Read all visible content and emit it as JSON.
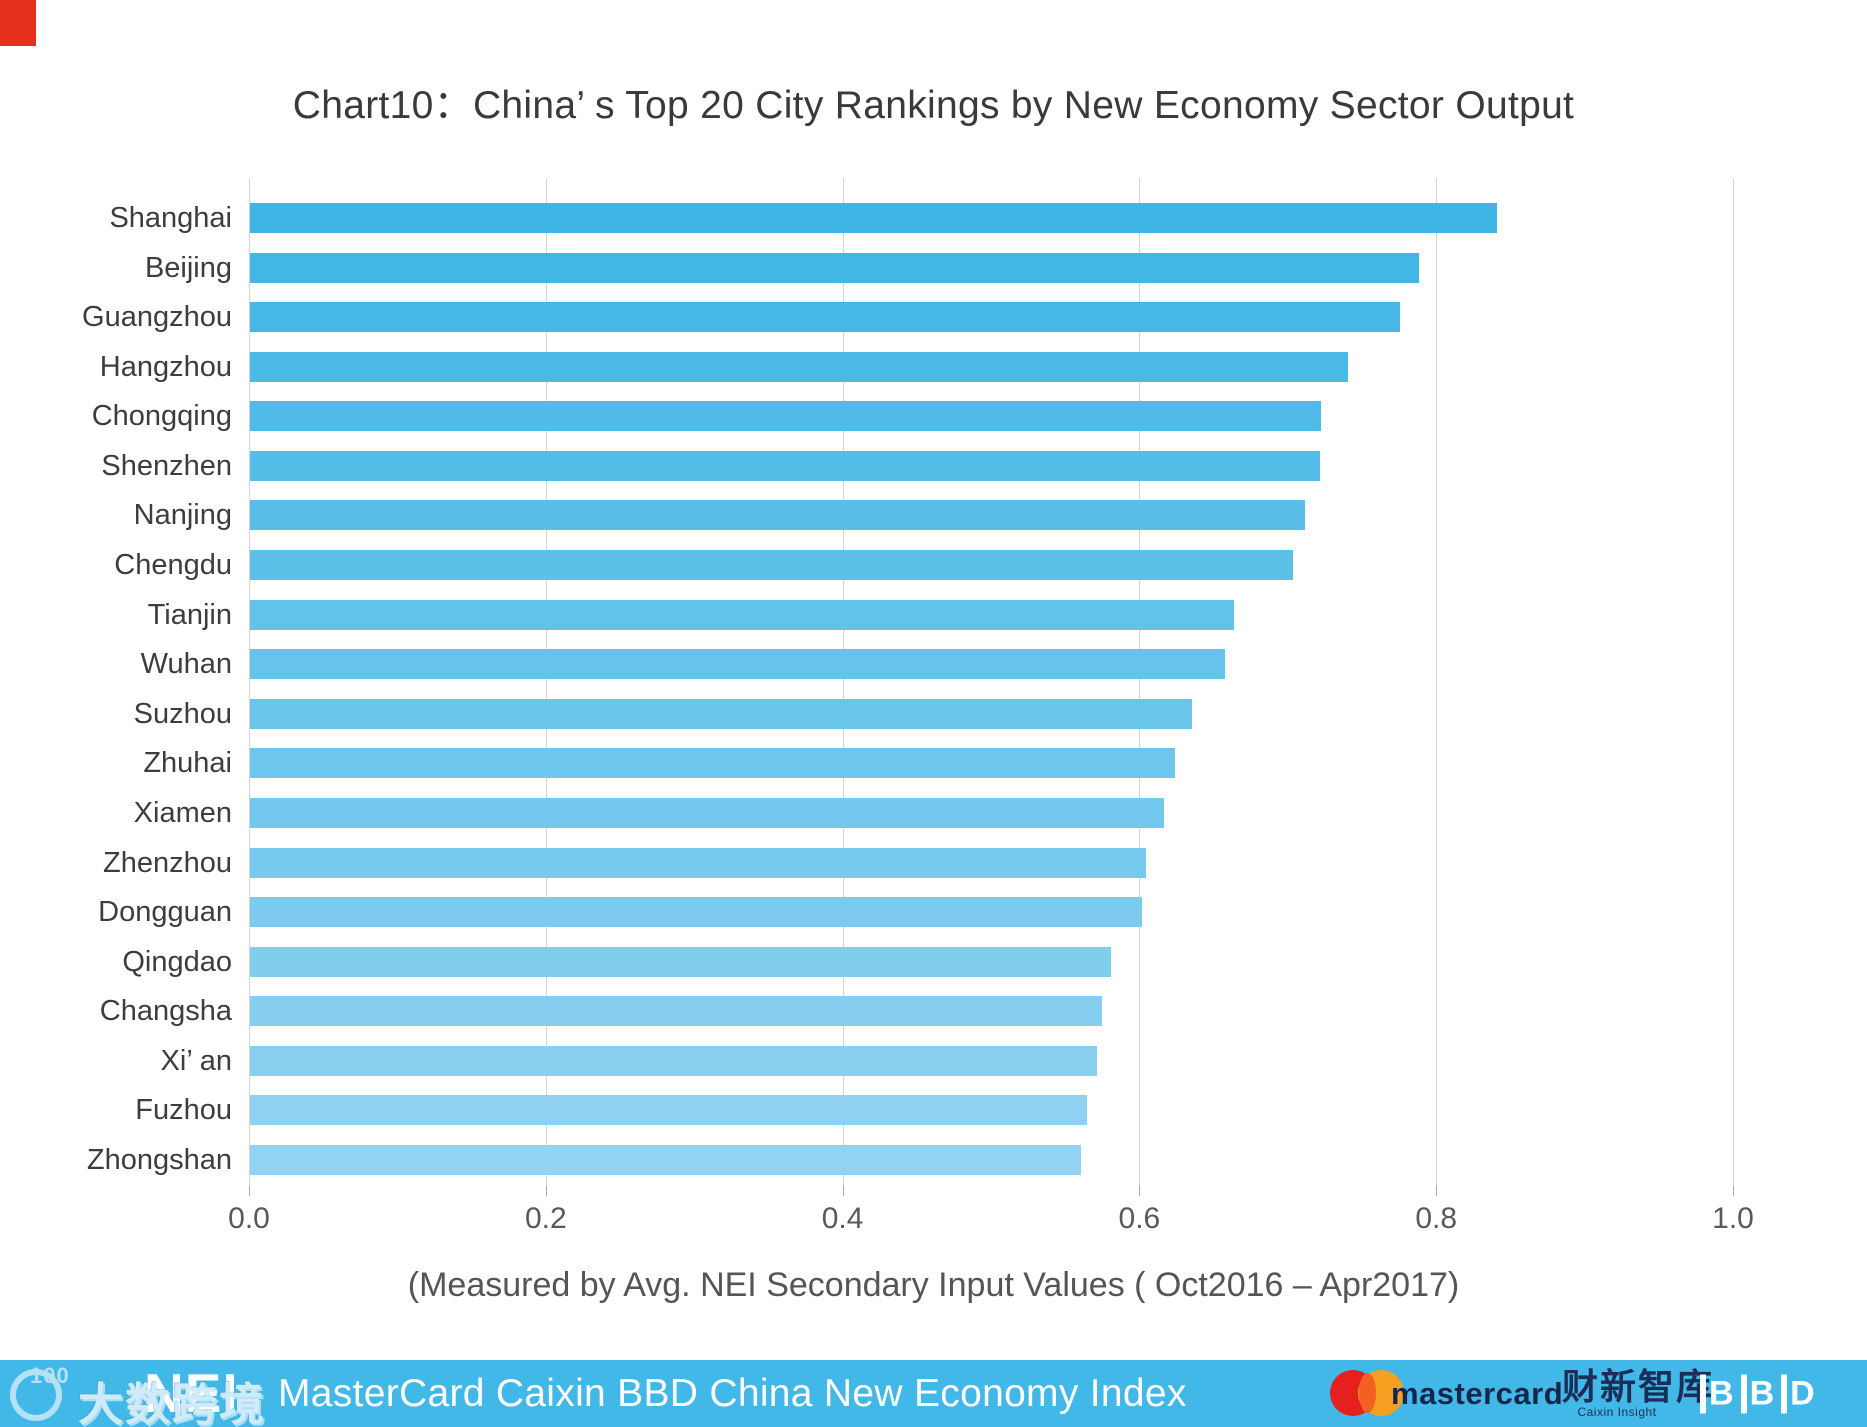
{
  "title_bar": {
    "corner_mark_color": "#E5311C"
  },
  "chart_data": {
    "type": "bar",
    "orientation": "horizontal",
    "title": "Chart10：China’ s Top 20 City Rankings by New Economy Sector Output",
    "categories": [
      "Shanghai",
      "Beijing",
      "Guangzhou",
      "Hangzhou",
      "Chongqing",
      "Shenzhen",
      "Nanjing",
      "Chengdu",
      "Tianjin",
      "Wuhan",
      "Suzhou",
      "Zhuhai",
      "Xiamen",
      "Zhenzhou",
      "Dongguan",
      "Qingdao",
      "Changsha",
      "Xi’ an",
      "Fuzhou",
      "Zhongshan"
    ],
    "values": [
      0.84,
      0.788,
      0.775,
      0.74,
      0.722,
      0.721,
      0.711,
      0.703,
      0.663,
      0.657,
      0.635,
      0.623,
      0.616,
      0.604,
      0.601,
      0.58,
      0.574,
      0.571,
      0.564,
      0.56
    ],
    "xlabel": "(Measured by Avg. NEI Secondary Input Values ( Oct2016 – Apr2017)",
    "ylabel": "",
    "xlim": [
      0.0,
      1.0
    ],
    "xticks": [
      0.0,
      0.2,
      0.4,
      0.6,
      0.8,
      1.0
    ],
    "grid": "vertical-on",
    "legend": "none",
    "bar_color_top": "#3EB5E5",
    "bar_color_bottom": "#92D3F1",
    "gridline_color": "#D7D7D7"
  },
  "footer": {
    "background": "#41B8E8",
    "nei_logo": "NEI",
    "index_name": "MasterCard Caixin BBD China New Economy Index",
    "mastercard": {
      "wordmark": "mastercard",
      "circle_red": "#E6201F",
      "circle_orange": "#F5A021",
      "overlap_color": "#F26122",
      "text_color": "#15254C"
    },
    "caixin": {
      "name": "财新智库",
      "subtitle": "Caixin Insight",
      "text_color": "#1B2E57"
    },
    "bbd_logo": "BBD"
  },
  "watermark": {
    "icon_text": "100",
    "text": "大数跨境"
  }
}
